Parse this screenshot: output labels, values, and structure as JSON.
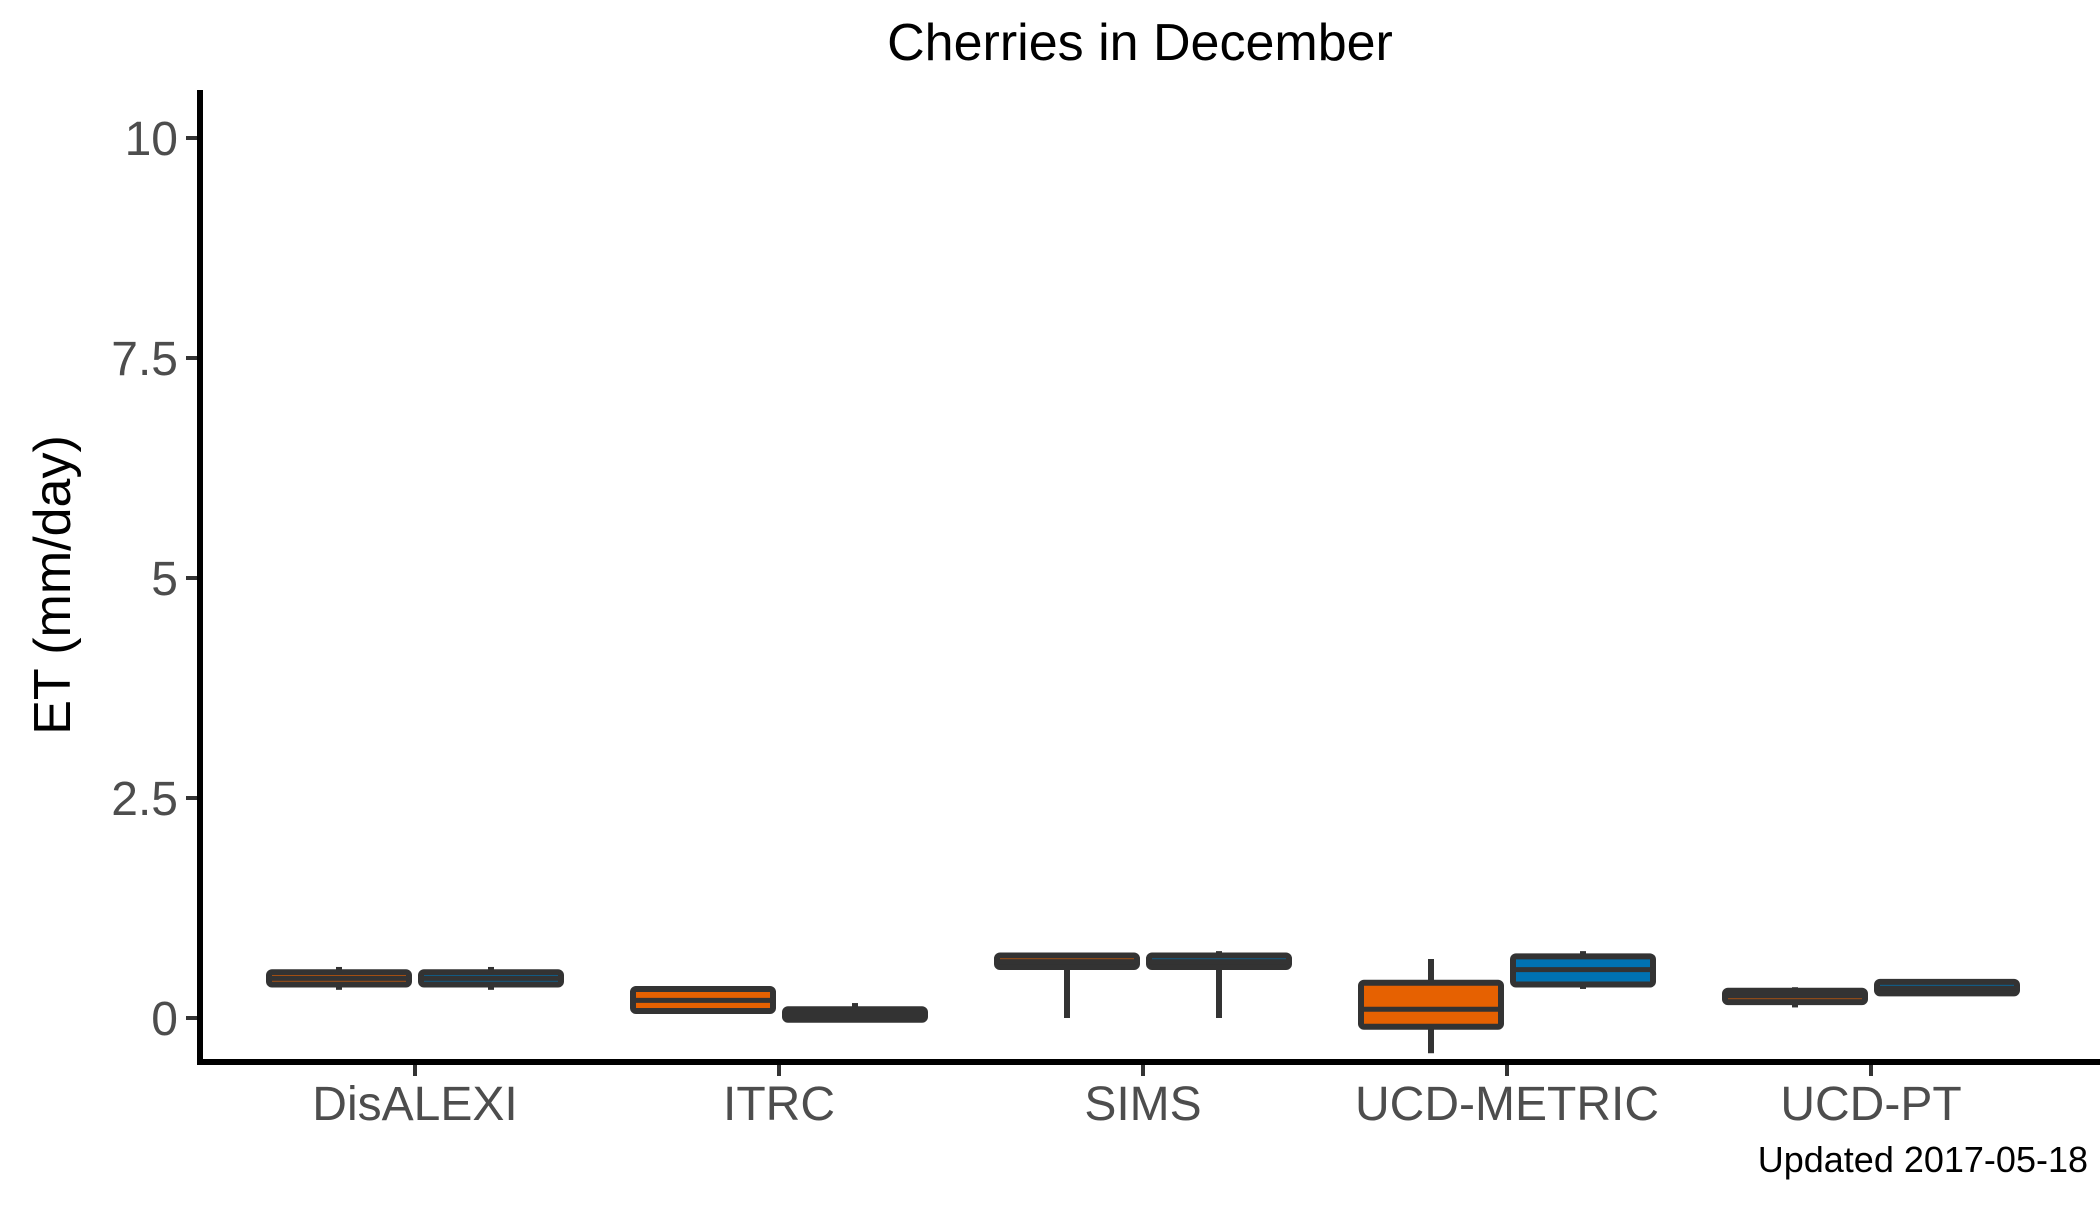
{
  "chart_data": {
    "type": "boxplot",
    "title": "Cherries in December",
    "xlabel": "",
    "ylabel": "ET (mm/day)",
    "ylim": [
      -0.5,
      10.5
    ],
    "yticks": [
      0,
      2.5,
      5,
      7.5,
      10
    ],
    "ytick_labels": [
      "0",
      "2.5",
      "5",
      "7.5",
      "10"
    ],
    "categories": [
      "DisALEXI",
      "ITRC",
      "SIMS",
      "UCD-METRIC",
      "UCD-PT"
    ],
    "grid": false,
    "legend": "none",
    "series": [
      {
        "color": "#E66101",
        "boxes": [
          {
            "whisker_low": 0.32,
            "q1": 0.38,
            "median": 0.45,
            "q3": 0.52,
            "whisker_high": 0.58
          },
          {
            "whisker_low": 0.08,
            "q1": 0.08,
            "median": 0.2,
            "q3": 0.33,
            "whisker_high": 0.33
          },
          {
            "whisker_low": 0.0,
            "q1": 0.58,
            "median": 0.64,
            "q3": 0.71,
            "whisker_high": 0.72
          },
          {
            "whisker_low": -0.4,
            "q1": -0.1,
            "median": 0.1,
            "q3": 0.4,
            "whisker_high": 0.67
          },
          {
            "whisker_low": 0.12,
            "q1": 0.18,
            "median": 0.25,
            "q3": 0.31,
            "whisker_high": 0.35
          }
        ]
      },
      {
        "color": "#0072B2",
        "boxes": [
          {
            "whisker_low": 0.32,
            "q1": 0.38,
            "median": 0.45,
            "q3": 0.52,
            "whisker_high": 0.58
          },
          {
            "whisker_low": -0.02,
            "q1": -0.02,
            "median": 0.04,
            "q3": 0.1,
            "whisker_high": 0.17
          },
          {
            "whisker_low": 0.0,
            "q1": 0.58,
            "median": 0.64,
            "q3": 0.71,
            "whisker_high": 0.76
          },
          {
            "whisker_low": 0.33,
            "q1": 0.38,
            "median": 0.55,
            "q3": 0.7,
            "whisker_high": 0.76
          },
          {
            "whisker_low": 0.28,
            "q1": 0.28,
            "median": 0.34,
            "q3": 0.41,
            "whisker_high": 0.41
          }
        ]
      }
    ],
    "caption": "Updated  2017-05-18"
  }
}
